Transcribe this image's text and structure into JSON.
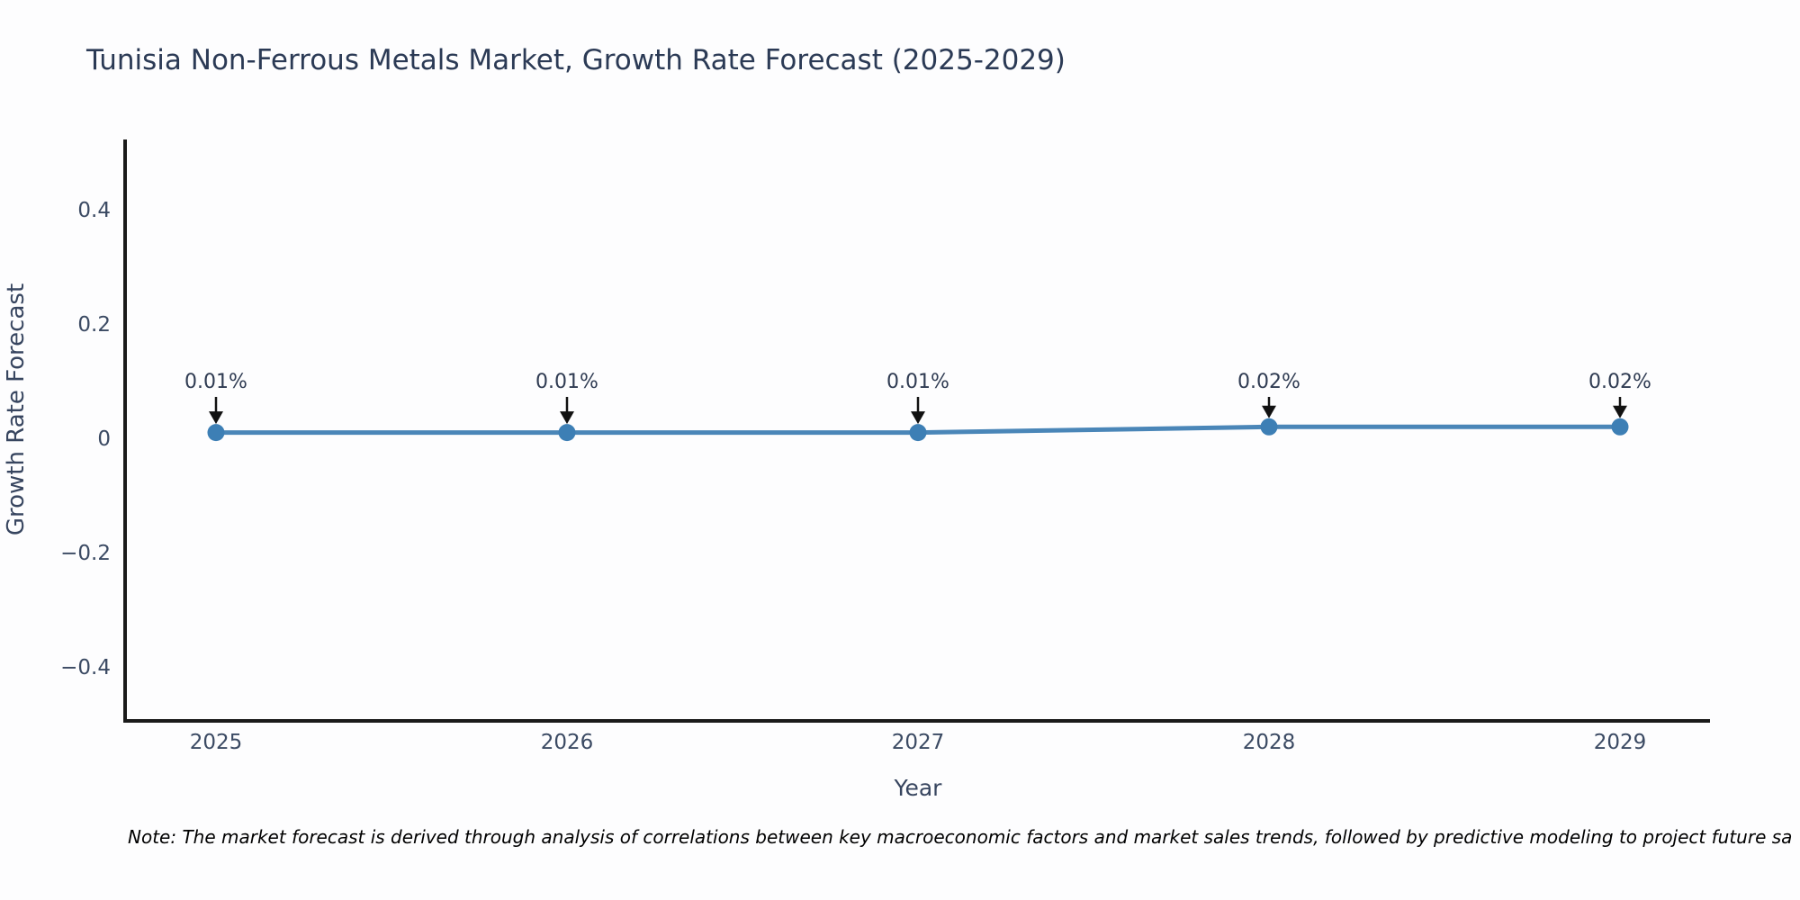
{
  "title": "Tunisia Non-Ferrous Metals Market, Growth Rate Forecast (2025-2029)",
  "note": "Note: The market forecast is derived through analysis of correlations between key macroeconomic factors and market sales trends, followed by predictive modeling to project future sa",
  "colors": {
    "line": "#4a86b8",
    "marker": "#3d7fb5",
    "axis": "#1a1a1a",
    "arrow": "#111111",
    "title_text": "#2b3a55",
    "tick_text": "#3b4a63"
  },
  "chart_data": {
    "type": "line",
    "title": "Tunisia Non-Ferrous Metals Market, Growth Rate Forecast (2025-2029)",
    "xlabel": "Year",
    "ylabel": "Growth Rate Forecast",
    "x": [
      2025,
      2026,
      2027,
      2028,
      2029
    ],
    "values": [
      0.01,
      0.01,
      0.01,
      0.02,
      0.02
    ],
    "point_labels": [
      "0.01%",
      "0.01%",
      "0.01%",
      "0.02%",
      "0.02%"
    ],
    "yticks": [
      0.4,
      0.2,
      0,
      -0.2,
      -0.4
    ],
    "ylim": [
      -0.5,
      0.52
    ],
    "grid": false,
    "legend_position": "none",
    "annotations": "value labels with downward arrows above each point"
  }
}
